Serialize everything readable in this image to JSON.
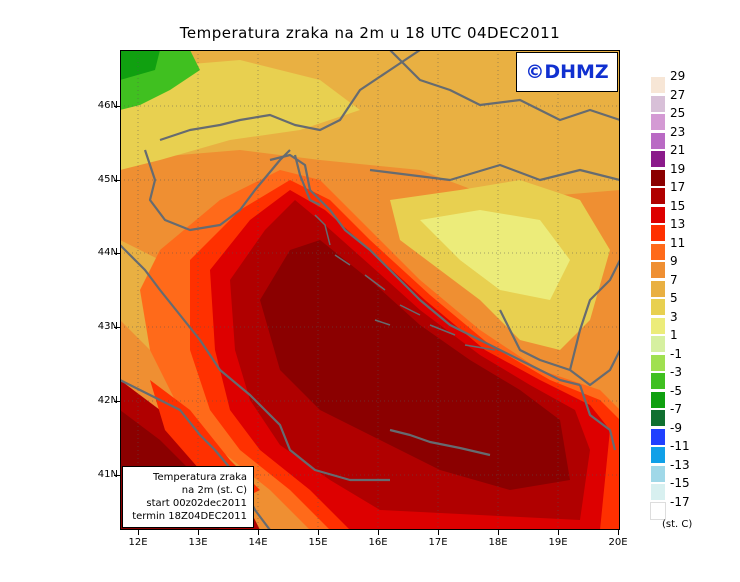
{
  "title": "Temperatura zraka na 2m u 18 UTC 04DEC2011",
  "logo": "©DHMZ",
  "lat_labels": [
    "46N",
    "45N",
    "44N",
    "43N",
    "42N",
    "41N"
  ],
  "lon_labels": [
    "12E",
    "13E",
    "14E",
    "15E",
    "16E",
    "17E",
    "18E",
    "19E",
    "20E"
  ],
  "info_box": {
    "line1": "Temperatura zraka",
    "line2": "na 2m (st. C)",
    "line3": "start 00z02dec2011",
    "line4": "termin 18Z04DEC2011"
  },
  "legend": {
    "labels": [
      "29",
      "27",
      "25",
      "23",
      "21",
      "19",
      "17",
      "15",
      "13",
      "11",
      "9",
      "7",
      "5",
      "3",
      "1",
      "-1",
      "-3",
      "-5",
      "-7",
      "-9",
      "-11",
      "-13",
      "-15",
      "-17"
    ],
    "colors": [
      "#f7e6d6",
      "#d8c0d8",
      "#d49ad4",
      "#b96ac4",
      "#8b1a8b",
      "#8b0000",
      "#b00000",
      "#dd0000",
      "#ff3000",
      "#ff6a1a",
      "#ef8f32",
      "#e9b042",
      "#e8d050",
      "#ecec7a",
      "#d6f0a0",
      "#a0e050",
      "#40c020",
      "#10a010",
      "#107030",
      "#2040ff",
      "#10a0e8",
      "#a0d8e8",
      "#d8f0f0",
      "#ffffff"
    ],
    "units": "(st. C)"
  },
  "map_colors": {
    "very_hot": "#8b0000",
    "hot": "#b00000",
    "warm_red": "#dd0000",
    "red_orange": "#ff3000",
    "orange": "#ff6a1a",
    "light_orange": "#ef8f32",
    "amber": "#e9b042",
    "yellow": "#e8d050",
    "pale_yellow": "#ecec7a",
    "green": "#40c020",
    "coast": "#666b70"
  }
}
